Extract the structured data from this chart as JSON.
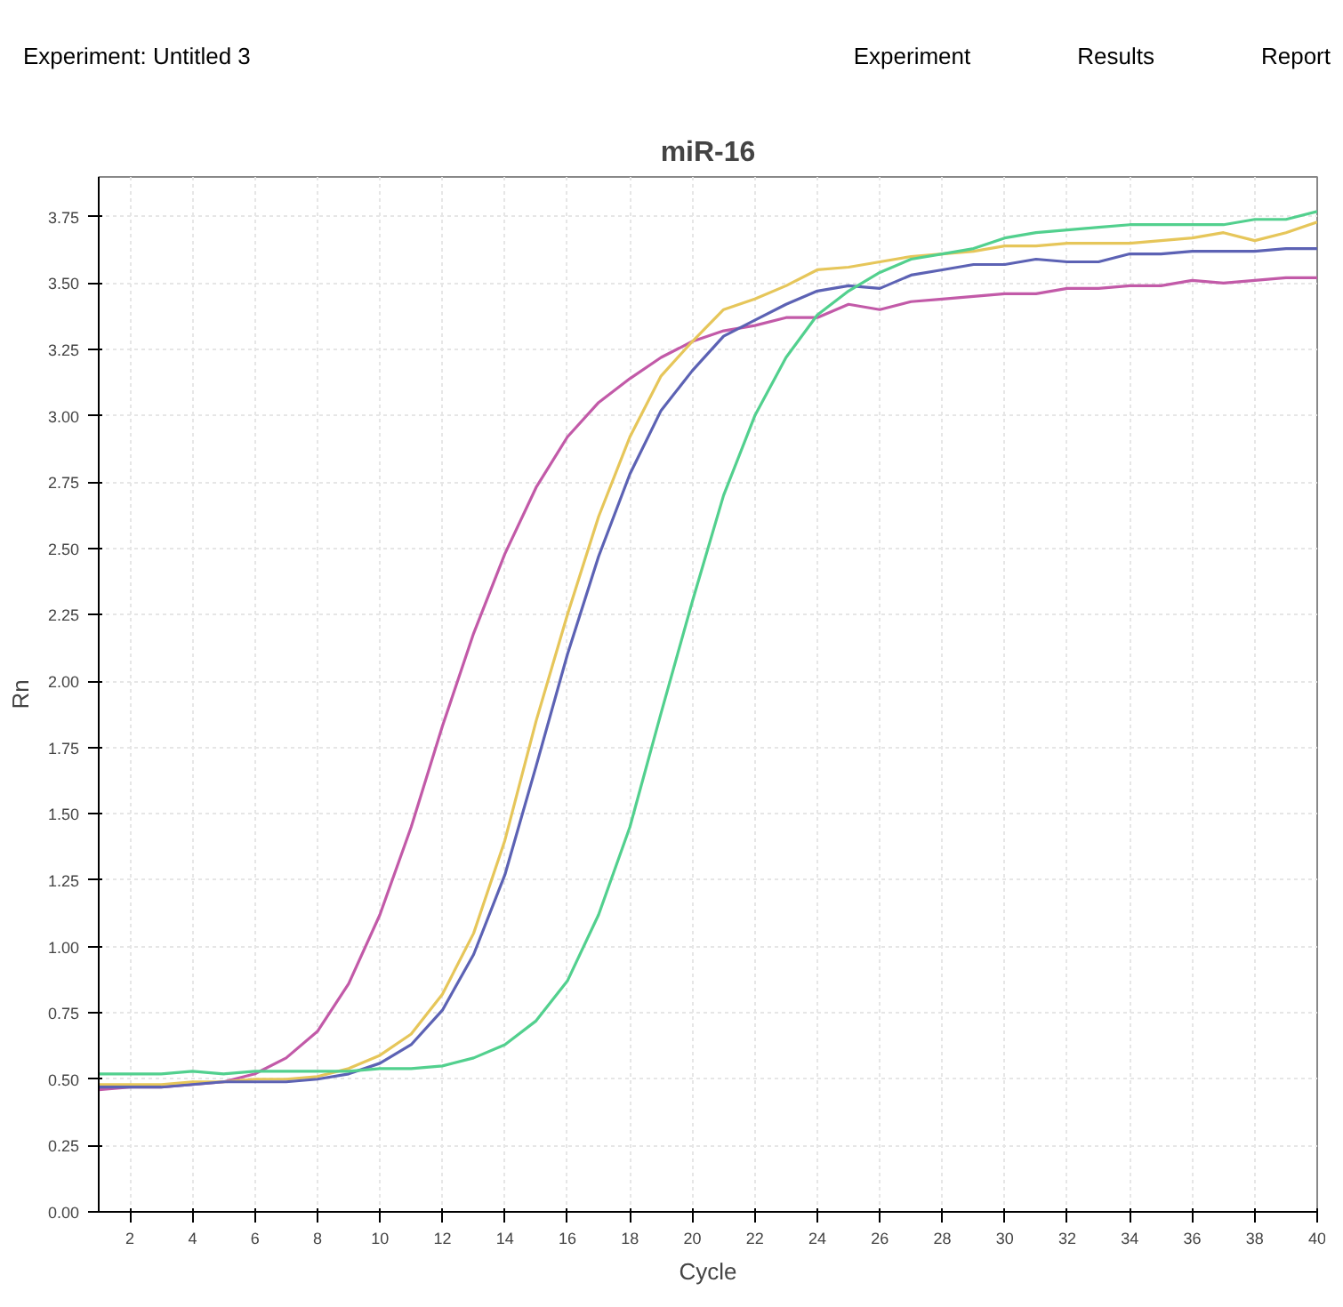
{
  "chart_data": {
    "type": "line",
    "title": "miR-16",
    "xlabel": "Cycle",
    "ylabel": "Rn",
    "annotations": [
      "Experiment: Untitled 3",
      "Experiment",
      "Results",
      "Report"
    ],
    "x": [
      1,
      2,
      3,
      4,
      5,
      6,
      7,
      8,
      9,
      10,
      11,
      12,
      13,
      14,
      15,
      16,
      17,
      18,
      19,
      20,
      21,
      22,
      23,
      24,
      25,
      26,
      27,
      28,
      29,
      30,
      31,
      32,
      33,
      34,
      35,
      36,
      37,
      38,
      39,
      40
    ],
    "series": [
      {
        "color": "#c25aa8",
        "values": [
          0.46,
          0.47,
          0.47,
          0.48,
          0.49,
          0.52,
          0.58,
          0.68,
          0.86,
          1.12,
          1.45,
          1.83,
          2.18,
          2.48,
          2.73,
          2.92,
          3.05,
          3.14,
          3.22,
          3.28,
          3.32,
          3.34,
          3.37,
          3.37,
          3.42,
          3.4,
          3.43,
          3.44,
          3.45,
          3.46,
          3.46,
          3.48,
          3.48,
          3.49,
          3.49,
          3.51,
          3.5,
          3.51,
          3.52,
          3.52
        ]
      },
      {
        "color": "#e6c65a",
        "values": [
          0.48,
          0.48,
          0.48,
          0.49,
          0.49,
          0.5,
          0.5,
          0.51,
          0.54,
          0.59,
          0.67,
          0.82,
          1.05,
          1.4,
          1.85,
          2.25,
          2.62,
          2.92,
          3.15,
          3.28,
          3.4,
          3.44,
          3.49,
          3.55,
          3.56,
          3.58,
          3.6,
          3.61,
          3.62,
          3.64,
          3.64,
          3.65,
          3.65,
          3.65,
          3.66,
          3.67,
          3.69,
          3.66,
          3.69,
          3.73
        ]
      },
      {
        "color": "#5c62b4",
        "values": [
          0.47,
          0.47,
          0.47,
          0.48,
          0.49,
          0.49,
          0.49,
          0.5,
          0.52,
          0.56,
          0.63,
          0.76,
          0.97,
          1.27,
          1.68,
          2.1,
          2.47,
          2.78,
          3.02,
          3.17,
          3.3,
          3.36,
          3.42,
          3.47,
          3.49,
          3.48,
          3.53,
          3.55,
          3.57,
          3.57,
          3.59,
          3.58,
          3.58,
          3.61,
          3.61,
          3.62,
          3.62,
          3.62,
          3.63,
          3.63
        ]
      },
      {
        "color": "#52d08e",
        "values": [
          0.52,
          0.52,
          0.52,
          0.53,
          0.52,
          0.53,
          0.53,
          0.53,
          0.53,
          0.54,
          0.54,
          0.55,
          0.58,
          0.63,
          0.72,
          0.87,
          1.12,
          1.45,
          1.88,
          2.3,
          2.7,
          3.0,
          3.22,
          3.38,
          3.47,
          3.54,
          3.59,
          3.61,
          3.63,
          3.67,
          3.69,
          3.7,
          3.71,
          3.72,
          3.72,
          3.72,
          3.72,
          3.74,
          3.74,
          3.77
        ]
      }
    ],
    "xlim": [
      1,
      40
    ],
    "ylim": [
      0,
      3.9
    ],
    "xticks": [
      2,
      4,
      6,
      8,
      10,
      12,
      14,
      16,
      18,
      20,
      22,
      24,
      26,
      28,
      30,
      32,
      34,
      36,
      38,
      40
    ],
    "yticks": [
      {
        "value": 0,
        "label": "0.00"
      },
      {
        "value": 0.25,
        "label": "0.25"
      },
      {
        "value": 0.5,
        "label": "0.50"
      },
      {
        "value": 0.75,
        "label": "0.75"
      },
      {
        "value": 1,
        "label": "1.00"
      },
      {
        "value": 1.25,
        "label": "1.25"
      },
      {
        "value": 1.5,
        "label": "1.50"
      },
      {
        "value": 1.75,
        "label": "1.75"
      },
      {
        "value": 2,
        "label": "2.00"
      },
      {
        "value": 2.25,
        "label": "2.25"
      },
      {
        "value": 2.5,
        "label": "2.50"
      },
      {
        "value": 2.75,
        "label": "2.75"
      },
      {
        "value": 3,
        "label": "3.00"
      },
      {
        "value": 3.25,
        "label": "3.25"
      },
      {
        "value": 3.5,
        "label": "3.50"
      },
      {
        "value": 3.75,
        "label": "3.75"
      }
    ],
    "grid": true,
    "marker": "none",
    "line_style": "solid"
  }
}
